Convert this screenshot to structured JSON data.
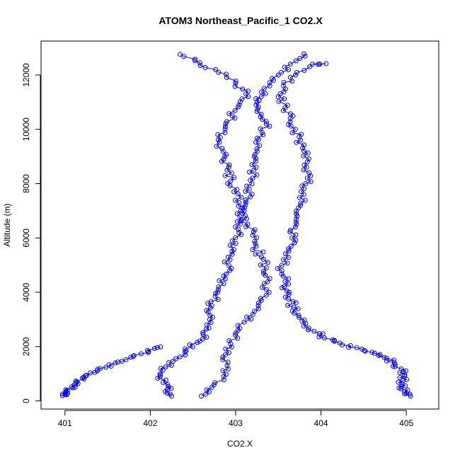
{
  "chart_data": {
    "type": "scatter",
    "title": "ATOM3 Northeast_Pacific_1 CO2.X",
    "xlabel": "CO2.X",
    "ylabel": "Altitude (m)",
    "xlim": [
      400.72,
      405.38
    ],
    "ylim": [
      -300,
      13250
    ],
    "x_ticks": [
      "401",
      "402",
      "403",
      "404",
      "405"
    ],
    "y_ticks": [
      "0",
      "2000",
      "4000",
      "6000",
      "8000",
      "10000",
      "12000"
    ],
    "color": "#0000ff",
    "marker": "open-circle",
    "connected": true,
    "grid": false,
    "legend": "none",
    "series": [
      {
        "profiles": [
          [
            [
              400.97,
              190
            ],
            [
              401.0,
              260
            ],
            [
              401.03,
              390
            ],
            [
              401.08,
              520
            ],
            [
              401.14,
              700
            ],
            [
              401.22,
              870
            ],
            [
              401.35,
              1050
            ],
            [
              401.48,
              1240
            ],
            [
              401.62,
              1430
            ],
            [
              401.8,
              1630
            ],
            [
              401.98,
              1820
            ],
            [
              402.12,
              1990
            ]
          ],
          [
            [
              402.25,
              180
            ],
            [
              402.2,
              420
            ],
            [
              402.15,
              680
            ],
            [
              402.12,
              950
            ],
            [
              402.18,
              1250
            ],
            [
              402.3,
              1550
            ],
            [
              402.42,
              1850
            ],
            [
              402.55,
              2150
            ],
            [
              402.62,
              2450
            ],
            [
              402.66,
              2800
            ],
            [
              402.7,
              3150
            ],
            [
              402.72,
              3500
            ],
            [
              402.76,
              3850
            ],
            [
              402.8,
              4200
            ],
            [
              402.86,
              4600
            ],
            [
              402.92,
              5000
            ],
            [
              402.96,
              5400
            ],
            [
              403.0,
              5800
            ],
            [
              403.04,
              6200
            ],
            [
              403.02,
              6600
            ],
            [
              403.06,
              7000
            ],
            [
              403.12,
              7400
            ],
            [
              403.16,
              7800
            ],
            [
              403.2,
              8200
            ],
            [
              403.24,
              8600
            ],
            [
              403.22,
              9000
            ],
            [
              403.28,
              9400
            ],
            [
              403.32,
              9800
            ],
            [
              403.36,
              10200
            ],
            [
              403.3,
              10550
            ],
            [
              403.24,
              10900
            ],
            [
              403.3,
              11200
            ],
            [
              403.4,
              11600
            ],
            [
              403.5,
              12000
            ],
            [
              403.64,
              12400
            ],
            [
              403.8,
              12780
            ]
          ],
          [
            [
              405.05,
              180
            ],
            [
              404.98,
              330
            ],
            [
              404.94,
              520
            ],
            [
              404.96,
              740
            ],
            [
              404.98,
              960
            ],
            [
              404.94,
              1180
            ],
            [
              404.86,
              1400
            ],
            [
              404.74,
              1600
            ],
            [
              404.6,
              1790
            ],
            [
              404.42,
              1960
            ],
            [
              404.22,
              2130
            ],
            [
              404.04,
              2320
            ],
            [
              403.92,
              2560
            ],
            [
              403.82,
              2850
            ],
            [
              403.74,
              3150
            ],
            [
              403.68,
              3450
            ],
            [
              403.62,
              3750
            ],
            [
              403.6,
              4050
            ],
            [
              403.58,
              4400
            ],
            [
              403.54,
              4800
            ],
            [
              403.56,
              5200
            ],
            [
              403.62,
              5600
            ],
            [
              403.66,
              6000
            ],
            [
              403.7,
              6400
            ],
            [
              403.72,
              6800
            ],
            [
              403.76,
              7200
            ],
            [
              403.8,
              7600
            ],
            [
              403.82,
              8000
            ],
            [
              403.86,
              8400
            ],
            [
              403.84,
              8800
            ],
            [
              403.8,
              9200
            ],
            [
              403.76,
              9600
            ],
            [
              403.7,
              10000
            ],
            [
              403.64,
              10400
            ],
            [
              403.58,
              10800
            ],
            [
              403.5,
              11200
            ],
            [
              403.56,
              11600
            ],
            [
              403.7,
              12000
            ],
            [
              403.9,
              12400
            ],
            [
              404.06,
              12420
            ]
          ],
          [
            [
              402.6,
              180
            ],
            [
              402.72,
              500
            ],
            [
              402.86,
              900
            ],
            [
              402.9,
              1300
            ],
            [
              402.88,
              1700
            ],
            [
              402.94,
              2100
            ],
            [
              403.0,
              2500
            ],
            [
              403.1,
              2900
            ],
            [
              403.22,
              3300
            ],
            [
              403.3,
              3700
            ],
            [
              403.36,
              4100
            ],
            [
              403.4,
              4500
            ],
            [
              403.36,
              4900
            ],
            [
              403.3,
              5300
            ],
            [
              403.24,
              5700
            ],
            [
              403.2,
              6100
            ],
            [
              403.14,
              6500
            ],
            [
              403.08,
              6900
            ],
            [
              403.04,
              7300
            ],
            [
              402.98,
              7700
            ],
            [
              402.94,
              8100
            ],
            [
              402.9,
              8500
            ],
            [
              402.86,
              8900
            ],
            [
              402.84,
              9300
            ],
            [
              402.82,
              9700
            ],
            [
              402.88,
              10100
            ],
            [
              402.96,
              10500
            ],
            [
              403.04,
              10900
            ],
            [
              403.12,
              11300
            ],
            [
              403.0,
              11700
            ],
            [
              402.8,
              12100
            ],
            [
              402.58,
              12450
            ],
            [
              402.35,
              12760
            ]
          ]
        ]
      }
    ]
  }
}
